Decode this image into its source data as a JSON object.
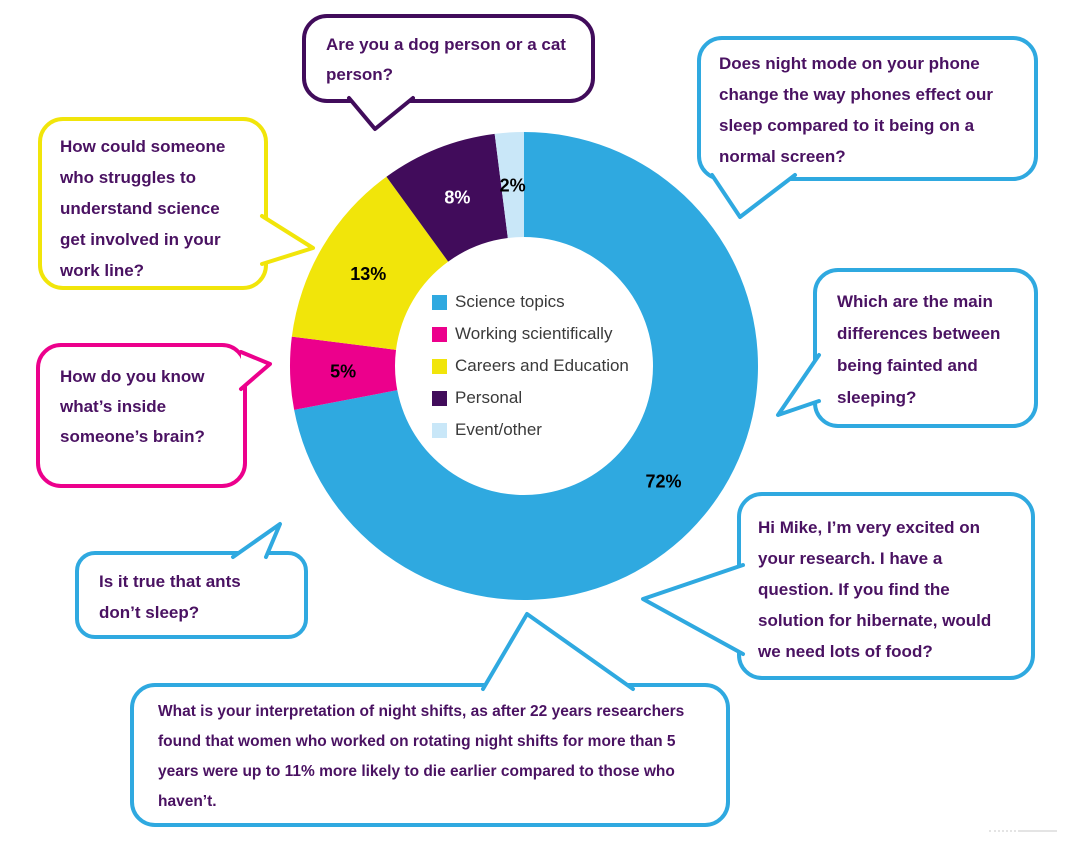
{
  "chart_data": {
    "type": "donut",
    "title": "",
    "categories": [
      "Science topics",
      "Working scientifically",
      "Careers and Education",
      "Personal",
      "Event/other"
    ],
    "values": [
      72,
      5,
      13,
      8,
      2
    ],
    "data_labels": [
      "72%",
      "5%",
      "13%",
      "8%",
      "2%"
    ],
    "colors": [
      "#2FA9E0",
      "#EC008C",
      "#F1E50A",
      "#410C5B",
      "#C9E7F8"
    ],
    "label_text_colors": [
      "#000000",
      "#000000",
      "#000000",
      "#FFFFFF",
      "#000000"
    ],
    "legend_position": "center",
    "start_angle_deg": 0,
    "direction": "clockwise"
  },
  "bubbles": [
    {
      "id": "dog-cat",
      "color": "#410C5B",
      "text": "Are you a dog person or a cat person?"
    },
    {
      "id": "night-mode",
      "color": "#2FA9E0",
      "text": "Does night mode on your phone change the way phones effect our sleep compared to it being on a normal screen?"
    },
    {
      "id": "struggles",
      "color": "#F1E50A",
      "text": "How could someone who struggles to understand science get involved in your work line?"
    },
    {
      "id": "brain",
      "color": "#EC008C",
      "text": "How do you know what’s inside someone’s brain?"
    },
    {
      "id": "fainted",
      "color": "#2FA9E0",
      "text": "Which are the main differences between being fainted and sleeping?"
    },
    {
      "id": "ants",
      "color": "#2FA9E0",
      "text": "Is it true that ants don’t sleep?"
    },
    {
      "id": "hi-mike",
      "color": "#2FA9E0",
      "text": "Hi Mike, I’m very excited on your research. I have a question. If you find the solution for hibernate, would we need lots of food?"
    },
    {
      "id": "night-shifts",
      "color": "#2FA9E0",
      "text": "What is your interpretation of night shifts, as after 22 years researchers found that women who worked on rotating night shifts for more than 5 years were up to 11% more likely to die earlier compared to those who haven’t."
    }
  ],
  "text_color": "#4A1262"
}
